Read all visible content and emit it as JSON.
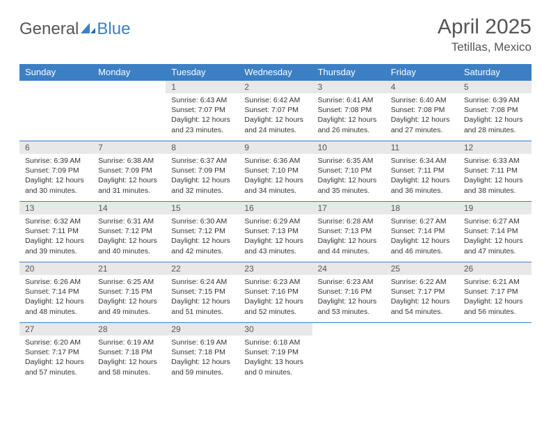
{
  "brand": {
    "part1": "General",
    "part2": "Blue"
  },
  "title": {
    "month": "April 2025",
    "location": "Tetillas, Mexico"
  },
  "colors": {
    "header_bg": "#3b7fc4",
    "header_text": "#ffffff",
    "daynum_bg": "#e8e8e8",
    "daynum_text": "#555555",
    "body_text": "#333333",
    "rule": "#3b7fc4",
    "page_bg": "#ffffff",
    "brand_grey": "#555555",
    "brand_blue": "#3b7fc4"
  },
  "layout": {
    "cols": 7,
    "rows": 5
  },
  "days_of_week": [
    "Sunday",
    "Monday",
    "Tuesday",
    "Wednesday",
    "Thursday",
    "Friday",
    "Saturday"
  ],
  "weeks": [
    [
      null,
      null,
      {
        "n": "1",
        "sr": "Sunrise: 6:43 AM",
        "ss": "Sunset: 7:07 PM",
        "d1": "Daylight: 12 hours",
        "d2": "and 23 minutes."
      },
      {
        "n": "2",
        "sr": "Sunrise: 6:42 AM",
        "ss": "Sunset: 7:07 PM",
        "d1": "Daylight: 12 hours",
        "d2": "and 24 minutes."
      },
      {
        "n": "3",
        "sr": "Sunrise: 6:41 AM",
        "ss": "Sunset: 7:08 PM",
        "d1": "Daylight: 12 hours",
        "d2": "and 26 minutes."
      },
      {
        "n": "4",
        "sr": "Sunrise: 6:40 AM",
        "ss": "Sunset: 7:08 PM",
        "d1": "Daylight: 12 hours",
        "d2": "and 27 minutes."
      },
      {
        "n": "5",
        "sr": "Sunrise: 6:39 AM",
        "ss": "Sunset: 7:08 PM",
        "d1": "Daylight: 12 hours",
        "d2": "and 28 minutes."
      }
    ],
    [
      {
        "n": "6",
        "sr": "Sunrise: 6:39 AM",
        "ss": "Sunset: 7:09 PM",
        "d1": "Daylight: 12 hours",
        "d2": "and 30 minutes."
      },
      {
        "n": "7",
        "sr": "Sunrise: 6:38 AM",
        "ss": "Sunset: 7:09 PM",
        "d1": "Daylight: 12 hours",
        "d2": "and 31 minutes."
      },
      {
        "n": "8",
        "sr": "Sunrise: 6:37 AM",
        "ss": "Sunset: 7:09 PM",
        "d1": "Daylight: 12 hours",
        "d2": "and 32 minutes."
      },
      {
        "n": "9",
        "sr": "Sunrise: 6:36 AM",
        "ss": "Sunset: 7:10 PM",
        "d1": "Daylight: 12 hours",
        "d2": "and 34 minutes."
      },
      {
        "n": "10",
        "sr": "Sunrise: 6:35 AM",
        "ss": "Sunset: 7:10 PM",
        "d1": "Daylight: 12 hours",
        "d2": "and 35 minutes."
      },
      {
        "n": "11",
        "sr": "Sunrise: 6:34 AM",
        "ss": "Sunset: 7:11 PM",
        "d1": "Daylight: 12 hours",
        "d2": "and 36 minutes."
      },
      {
        "n": "12",
        "sr": "Sunrise: 6:33 AM",
        "ss": "Sunset: 7:11 PM",
        "d1": "Daylight: 12 hours",
        "d2": "and 38 minutes."
      }
    ],
    [
      {
        "n": "13",
        "sr": "Sunrise: 6:32 AM",
        "ss": "Sunset: 7:11 PM",
        "d1": "Daylight: 12 hours",
        "d2": "and 39 minutes."
      },
      {
        "n": "14",
        "sr": "Sunrise: 6:31 AM",
        "ss": "Sunset: 7:12 PM",
        "d1": "Daylight: 12 hours",
        "d2": "and 40 minutes."
      },
      {
        "n": "15",
        "sr": "Sunrise: 6:30 AM",
        "ss": "Sunset: 7:12 PM",
        "d1": "Daylight: 12 hours",
        "d2": "and 42 minutes."
      },
      {
        "n": "16",
        "sr": "Sunrise: 6:29 AM",
        "ss": "Sunset: 7:13 PM",
        "d1": "Daylight: 12 hours",
        "d2": "and 43 minutes."
      },
      {
        "n": "17",
        "sr": "Sunrise: 6:28 AM",
        "ss": "Sunset: 7:13 PM",
        "d1": "Daylight: 12 hours",
        "d2": "and 44 minutes."
      },
      {
        "n": "18",
        "sr": "Sunrise: 6:27 AM",
        "ss": "Sunset: 7:14 PM",
        "d1": "Daylight: 12 hours",
        "d2": "and 46 minutes."
      },
      {
        "n": "19",
        "sr": "Sunrise: 6:27 AM",
        "ss": "Sunset: 7:14 PM",
        "d1": "Daylight: 12 hours",
        "d2": "and 47 minutes."
      }
    ],
    [
      {
        "n": "20",
        "sr": "Sunrise: 6:26 AM",
        "ss": "Sunset: 7:14 PM",
        "d1": "Daylight: 12 hours",
        "d2": "and 48 minutes."
      },
      {
        "n": "21",
        "sr": "Sunrise: 6:25 AM",
        "ss": "Sunset: 7:15 PM",
        "d1": "Daylight: 12 hours",
        "d2": "and 49 minutes."
      },
      {
        "n": "22",
        "sr": "Sunrise: 6:24 AM",
        "ss": "Sunset: 7:15 PM",
        "d1": "Daylight: 12 hours",
        "d2": "and 51 minutes."
      },
      {
        "n": "23",
        "sr": "Sunrise: 6:23 AM",
        "ss": "Sunset: 7:16 PM",
        "d1": "Daylight: 12 hours",
        "d2": "and 52 minutes."
      },
      {
        "n": "24",
        "sr": "Sunrise: 6:23 AM",
        "ss": "Sunset: 7:16 PM",
        "d1": "Daylight: 12 hours",
        "d2": "and 53 minutes."
      },
      {
        "n": "25",
        "sr": "Sunrise: 6:22 AM",
        "ss": "Sunset: 7:17 PM",
        "d1": "Daylight: 12 hours",
        "d2": "and 54 minutes."
      },
      {
        "n": "26",
        "sr": "Sunrise: 6:21 AM",
        "ss": "Sunset: 7:17 PM",
        "d1": "Daylight: 12 hours",
        "d2": "and 56 minutes."
      }
    ],
    [
      {
        "n": "27",
        "sr": "Sunrise: 6:20 AM",
        "ss": "Sunset: 7:17 PM",
        "d1": "Daylight: 12 hours",
        "d2": "and 57 minutes."
      },
      {
        "n": "28",
        "sr": "Sunrise: 6:19 AM",
        "ss": "Sunset: 7:18 PM",
        "d1": "Daylight: 12 hours",
        "d2": "and 58 minutes."
      },
      {
        "n": "29",
        "sr": "Sunrise: 6:19 AM",
        "ss": "Sunset: 7:18 PM",
        "d1": "Daylight: 12 hours",
        "d2": "and 59 minutes."
      },
      {
        "n": "30",
        "sr": "Sunrise: 6:18 AM",
        "ss": "Sunset: 7:19 PM",
        "d1": "Daylight: 13 hours",
        "d2": "and 0 minutes."
      },
      null,
      null,
      null
    ]
  ]
}
